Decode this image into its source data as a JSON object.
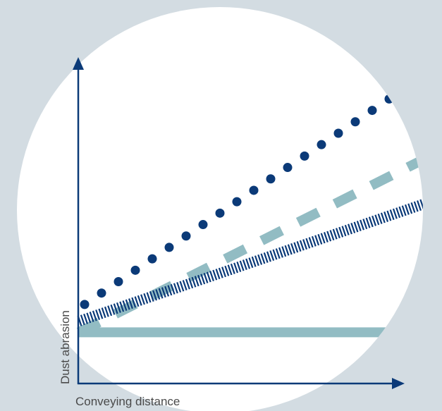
{
  "colors": {
    "background": "#d3dce2",
    "circle": "#ffffff",
    "axis": "#0b3a78",
    "series_dotted": "#0b3a78",
    "series_dashed": "#92bcc3",
    "series_hatched": "#0b3a78",
    "series_flat": "#92bcc3",
    "label": "#4a4a4a"
  },
  "chart_data": {
    "type": "line",
    "xlabel": "Conveying distance",
    "ylabel": "Dust abrasion",
    "xlim": [
      0,
      1
    ],
    "ylim": [
      0,
      1
    ],
    "grid": false,
    "legend": "none",
    "series": [
      {
        "style": "dotted",
        "x": [
          0,
          1
        ],
        "y": [
          0.18,
          1.0
        ]
      },
      {
        "style": "dashed",
        "x": [
          0,
          1
        ],
        "y": [
          0.08,
          0.7
        ]
      },
      {
        "style": "hatched",
        "x": [
          0,
          1
        ],
        "y": [
          0.12,
          0.54
        ]
      },
      {
        "style": "solid",
        "x": [
          0,
          1
        ],
        "y": [
          0.08,
          0.08
        ]
      }
    ]
  }
}
